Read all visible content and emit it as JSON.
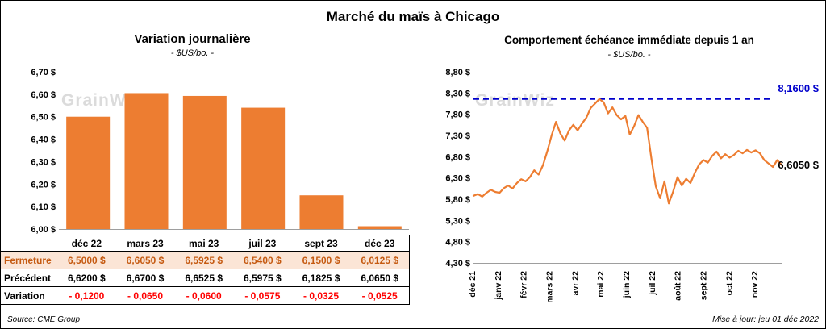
{
  "header": {
    "title": "Marché du maïs à Chicago"
  },
  "watermark": "GrainWiz",
  "footer": {
    "source": "Source: CME Group",
    "updated": "Mise à jour: jeu 01 déc 2022"
  },
  "colors": {
    "bar_orange": "#ED7D31",
    "line_orange": "#ED7D31",
    "max_line_blue": "#0000CC",
    "variation_red": "#FF0000",
    "fermeture_bg": "#FBE5D6",
    "fermeture_text": "#C55A11",
    "watermark_gray": "#DBDBDB"
  },
  "chart_data": [
    {
      "type": "bar",
      "title": "Variation  journalière",
      "subtitle": "- $US/bo. -",
      "categories": [
        "déc 22",
        "mars 23",
        "mai 23",
        "juil 23",
        "sept 23",
        "déc 23"
      ],
      "values": [
        6.5,
        6.605,
        6.5925,
        6.54,
        6.15,
        6.0125
      ],
      "ylim": [
        6.0,
        6.7
      ],
      "ytick_labels": [
        "6,00 $",
        "6,10 $",
        "6,20 $",
        "6,30 $",
        "6,40 $",
        "6,50 $",
        "6,60 $",
        "6,70 $"
      ],
      "bar_color": "#ED7D31",
      "grid": false,
      "legend": false
    },
    {
      "type": "line",
      "title": "Comportement  échéance  immédiate  depuis 1 an",
      "subtitle": "- $US/bo. -",
      "x_labels": [
        "déc 21",
        "janv 22",
        "févr 22",
        "mars 22",
        "avr 22",
        "mai 22",
        "juin 22",
        "juil 22",
        "août 22",
        "sept 22",
        "oct 22",
        "nov 22"
      ],
      "values": [
        5.88,
        5.92,
        5.86,
        5.95,
        6.02,
        5.97,
        5.95,
        6.06,
        6.12,
        6.05,
        6.18,
        6.27,
        6.22,
        6.32,
        6.48,
        6.38,
        6.6,
        6.93,
        7.3,
        7.62,
        7.35,
        7.18,
        7.42,
        7.55,
        7.42,
        7.58,
        7.72,
        7.95,
        8.05,
        8.16,
        8.08,
        7.82,
        7.96,
        7.78,
        7.68,
        7.76,
        7.32,
        7.52,
        7.78,
        7.62,
        7.48,
        6.75,
        6.1,
        5.82,
        6.22,
        5.7,
        5.98,
        6.32,
        6.12,
        6.28,
        6.18,
        6.42,
        6.62,
        6.72,
        6.66,
        6.82,
        6.92,
        6.76,
        6.86,
        6.78,
        6.84,
        6.94,
        6.88,
        6.96,
        6.9,
        6.95,
        6.88,
        6.72,
        6.64,
        6.56,
        6.72,
        6.605
      ],
      "ylim": [
        4.3,
        8.8
      ],
      "ytick_labels": [
        "4,30 $",
        "4,80 $",
        "5,30 $",
        "5,80 $",
        "6,30 $",
        "6,80 $",
        "7,30 $",
        "7,80 $",
        "8,30 $",
        "8,80 $"
      ],
      "line_color": "#ED7D31",
      "max_line": {
        "value": 8.16,
        "label": "8,1600 $",
        "color": "#0000CC"
      },
      "last_point_label": "6,6050 $",
      "grid": false,
      "legend": false
    }
  ],
  "table": {
    "rows": [
      {
        "label": "Fermeture",
        "values": [
          "6,5000  $",
          "6,6050  $",
          "6,5925  $",
          "6,5400  $",
          "6,1500  $",
          "6,0125  $"
        ]
      },
      {
        "label": "Précédent",
        "values": [
          "6,6200  $",
          "6,6700  $",
          "6,6525  $",
          "6,5975  $",
          "6,1825  $",
          "6,0650  $"
        ]
      },
      {
        "label": "Variation",
        "values": [
          "- 0,1200",
          "- 0,0650",
          "- 0,0600",
          "- 0,0575",
          "- 0,0325",
          "- 0,0525"
        ]
      }
    ]
  }
}
